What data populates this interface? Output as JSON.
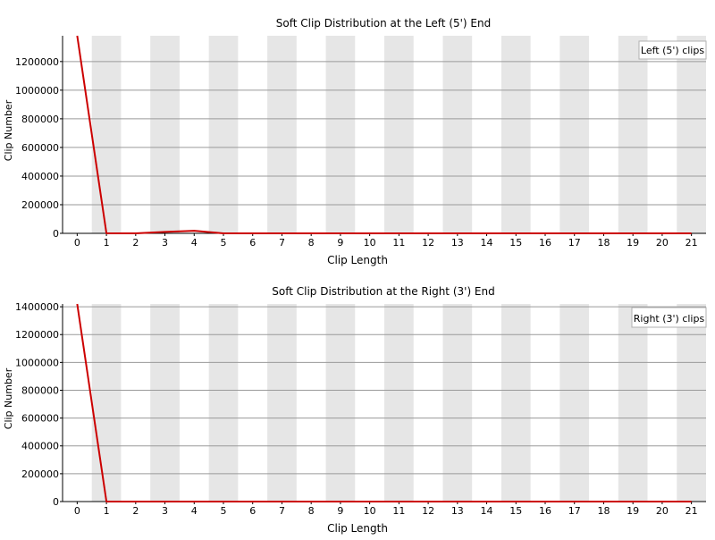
{
  "colors": {
    "background": "#ffffff",
    "band": "#e6e6e6",
    "gridline": "#9a9a9a",
    "axis": "#000000",
    "series": "#cc0000",
    "legend_text": "#cc0000"
  },
  "chart_data": [
    {
      "type": "line",
      "title": "Soft Clip Distribution at the Left (5') End",
      "xlabel": "Clip Length",
      "ylabel": "Clip Number",
      "x": [
        0,
        1,
        2,
        3,
        4,
        5,
        6,
        7,
        8,
        9,
        10,
        11,
        12,
        13,
        14,
        15,
        16,
        17,
        18,
        19,
        20,
        21
      ],
      "y_ticks": [
        0,
        200000,
        400000,
        600000,
        800000,
        1000000,
        1200000
      ],
      "ylim": [
        0,
        1380000
      ],
      "xlim": [
        -0.5,
        21.5
      ],
      "grid": true,
      "alternating_bands": true,
      "legend_position": "top-right",
      "series": [
        {
          "name": "Left (5') clips",
          "values": [
            1380000,
            0,
            0,
            10000,
            18000,
            0,
            0,
            0,
            0,
            0,
            0,
            0,
            0,
            0,
            0,
            0,
            0,
            0,
            0,
            0,
            0,
            0
          ]
        }
      ]
    },
    {
      "type": "line",
      "title": "Soft Clip Distribution at the Right (3') End",
      "xlabel": "Clip Length",
      "ylabel": "Clip Number",
      "x": [
        0,
        1,
        2,
        3,
        4,
        5,
        6,
        7,
        8,
        9,
        10,
        11,
        12,
        13,
        14,
        15,
        16,
        17,
        18,
        19,
        20,
        21
      ],
      "y_ticks": [
        0,
        200000,
        400000,
        600000,
        800000,
        1000000,
        1200000,
        1400000
      ],
      "ylim": [
        0,
        1420000
      ],
      "xlim": [
        -0.5,
        21.5
      ],
      "grid": true,
      "alternating_bands": true,
      "legend_position": "top-right",
      "series": [
        {
          "name": "Right (3') clips",
          "values": [
            1420000,
            0,
            0,
            0,
            0,
            0,
            0,
            0,
            0,
            0,
            0,
            0,
            0,
            0,
            0,
            0,
            0,
            0,
            0,
            0,
            0,
            0
          ]
        }
      ]
    }
  ]
}
